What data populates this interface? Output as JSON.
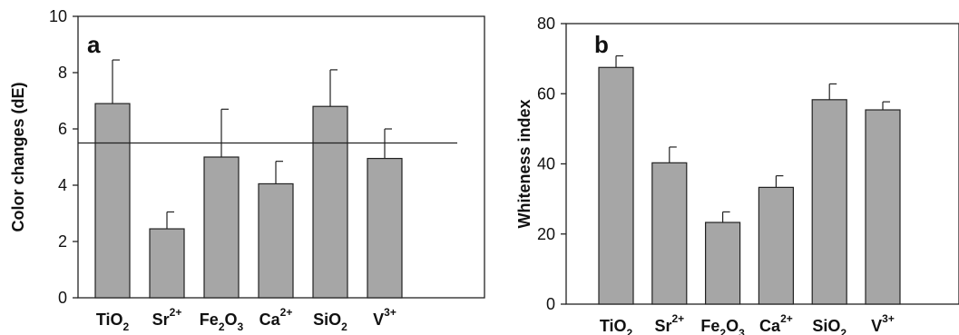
{
  "chart_data": [
    {
      "type": "bar",
      "panel_label": "a",
      "ylabel": "Color changes (dE)",
      "ylim": [
        0,
        10
      ],
      "yticks": [
        0,
        2,
        4,
        6,
        8,
        10
      ],
      "categories": [
        {
          "base": "TiO",
          "sub": "2",
          "sup": ""
        },
        {
          "base": "Sr",
          "sub": "",
          "sup": "2+"
        },
        {
          "base": "Fe",
          "sub": "2",
          "mid": "O",
          "sub2": "3",
          "sup": ""
        },
        {
          "base": "Ca",
          "sub": "",
          "sup": "2+"
        },
        {
          "base": "SiO",
          "sub": "2",
          "sup": ""
        },
        {
          "base": "V",
          "sub": "",
          "sup": "3+"
        }
      ],
      "values": [
        6.9,
        2.45,
        5.0,
        4.05,
        6.8,
        4.95
      ],
      "errors": [
        1.55,
        0.6,
        1.7,
        0.8,
        1.3,
        1.05
      ],
      "reference_line": 5.5,
      "bar_color": "#a6a6a6",
      "grid": false
    },
    {
      "type": "bar",
      "panel_label": "b",
      "ylabel": "Whiteness index",
      "ylim": [
        0,
        80
      ],
      "yticks": [
        0,
        20,
        40,
        60,
        80
      ],
      "categories": [
        {
          "base": "TiO",
          "sub": "2",
          "sup": ""
        },
        {
          "base": "Sr",
          "sub": "",
          "sup": "2+"
        },
        {
          "base": "Fe",
          "sub": "2",
          "mid": "O",
          "sub2": "3",
          "sup": ""
        },
        {
          "base": "Ca",
          "sub": "",
          "sup": "2+"
        },
        {
          "base": "SiO",
          "sub": "2",
          "sup": ""
        },
        {
          "base": "V",
          "sub": "",
          "sup": "3+"
        }
      ],
      "values": [
        67.5,
        40.3,
        23.3,
        33.3,
        58.3,
        55.4
      ],
      "errors": [
        3.3,
        4.5,
        3.0,
        3.3,
        4.5,
        2.3
      ],
      "bar_color": "#a6a6a6",
      "grid": false
    }
  ]
}
